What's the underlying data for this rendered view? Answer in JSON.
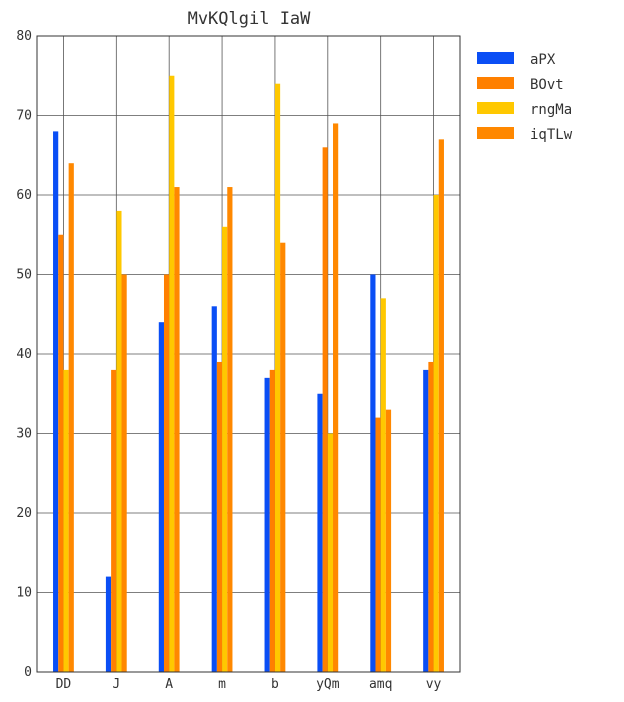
{
  "chart_data": {
    "type": "bar",
    "title": "MvKQlgil IaW",
    "xlabel": "",
    "ylabel": "",
    "categories": [
      "DD",
      "J",
      "A",
      "m",
      "b",
      "yQm",
      "amq",
      "vy"
    ],
    "ylim": [
      0,
      80
    ],
    "yticks": [
      0,
      10,
      20,
      30,
      40,
      50,
      60,
      70,
      80
    ],
    "grid": true,
    "legend_position": "right",
    "series": [
      {
        "name": "aPX",
        "color": "#0a4ef5",
        "values": [
          68,
          12,
          44,
          46,
          37,
          35,
          50,
          38
        ]
      },
      {
        "name": "BOvt",
        "color": "#ff8000",
        "values": [
          55,
          38,
          50,
          39,
          38,
          66,
          32,
          39
        ]
      },
      {
        "name": "rngMa",
        "color": "#ffc800",
        "values": [
          38,
          58,
          75,
          56,
          74,
          30,
          47,
          60
        ]
      },
      {
        "name": "iqTLw",
        "color": "#ff8800",
        "values": [
          64,
          50,
          61,
          61,
          54,
          69,
          33,
          67
        ]
      }
    ]
  }
}
